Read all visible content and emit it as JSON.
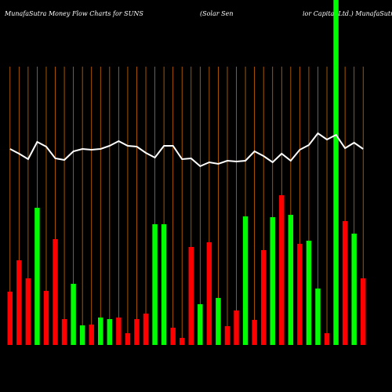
{
  "chart_data": {
    "type": "bar",
    "title": "MunafaSutra  Money Flow  Charts for SUNS",
    "subtitle": "(Solar Sen",
    "subtitle_right": "ior Capital Ltd.) MunafaSutra",
    "values": [
      68,
      108,
      85,
      175,
      69,
      135,
      33,
      78,
      25,
      26,
      35,
      33,
      35,
      15,
      33,
      40,
      154,
      154,
      22,
      9,
      125,
      52,
      131,
      60,
      24,
      44,
      164,
      32,
      121,
      163,
      191,
      166,
      129,
      133,
      72,
      15,
      440,
      158,
      142,
      85
    ],
    "colors": [
      "#ff0000",
      "#ff0000",
      "#ff0000",
      "#00ff00",
      "#ff0000",
      "#ff0000",
      "#ff0000",
      "#00ff00",
      "#00ff00",
      "#ff0000",
      "#00ff00",
      "#00ff00",
      "#ff0000",
      "#ff0000",
      "#ff0000",
      "#ff0000",
      "#00ff00",
      "#00ff00",
      "#ff0000",
      "#ff0000",
      "#ff0000",
      "#00ff00",
      "#ff0000",
      "#00ff00",
      "#ff0000",
      "#ff0000",
      "#00ff00",
      "#ff0000",
      "#ff0000",
      "#00ff00",
      "#ff0000",
      "#00ff00",
      "#ff0000",
      "#00ff00",
      "#00ff00",
      "#ff0000",
      "#00ff00",
      "#ff0000",
      "#00ff00",
      "#ff0000"
    ],
    "line": {
      "color": "#ffffff",
      "values": [
        250,
        244,
        237,
        259,
        253,
        238,
        236,
        247,
        250,
        249,
        250,
        254,
        260,
        254,
        253,
        245,
        239,
        254,
        254,
        237,
        238,
        228,
        233,
        231,
        235,
        234,
        235,
        247,
        241,
        233,
        244,
        235,
        249,
        255,
        270,
        262,
        268,
        251,
        258,
        250
      ]
    },
    "grid_color": "#cc6a00",
    "ylim": [
      0,
      440
    ]
  }
}
